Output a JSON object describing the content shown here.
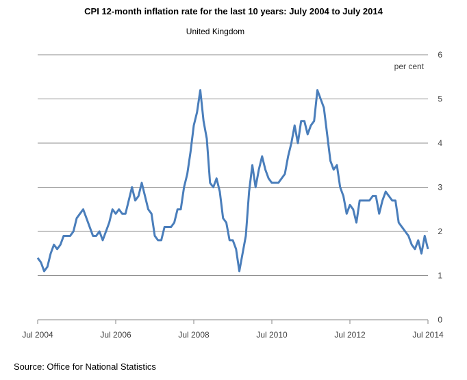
{
  "title": "CPI 12-month inflation rate for the last 10 years: July 2004 to July 2014",
  "subtitle": "United Kingdom",
  "source": "Source: Office for National Statistics",
  "chart_data": {
    "type": "line",
    "title": "CPI 12-month inflation rate for the last 10 years: July 2004 to July 2014",
    "subtitle": "United Kingdom",
    "xlabel": "",
    "ylabel": "per cent",
    "ylim": [
      0,
      6
    ],
    "yticks": [
      "0",
      "1",
      "2",
      "3",
      "4",
      "5",
      "6"
    ],
    "xticks": [
      "Jul 2004",
      "Jul 2006",
      "Jul 2008",
      "Jul 2010",
      "Jul 2012",
      "Jul 2014"
    ],
    "grid": true,
    "y_axis_position": "right",
    "line_color": "#4a7ebb",
    "series": [
      {
        "name": "",
        "x_start": "Jul 2004",
        "x_end": "Jul 2014",
        "frequency": "monthly",
        "values": [
          1.4,
          1.3,
          1.1,
          1.2,
          1.5,
          1.7,
          1.6,
          1.7,
          1.9,
          1.9,
          1.9,
          2.0,
          2.3,
          2.4,
          2.5,
          2.3,
          2.1,
          1.9,
          1.9,
          2.0,
          1.8,
          2.0,
          2.2,
          2.5,
          2.4,
          2.5,
          2.4,
          2.4,
          2.7,
          3.0,
          2.7,
          2.8,
          3.1,
          2.8,
          2.5,
          2.4,
          1.9,
          1.8,
          1.8,
          2.1,
          2.1,
          2.1,
          2.2,
          2.5,
          2.5,
          3.0,
          3.3,
          3.8,
          4.4,
          4.7,
          5.2,
          4.5,
          4.1,
          3.1,
          3.0,
          3.2,
          2.9,
          2.3,
          2.2,
          1.8,
          1.8,
          1.6,
          1.1,
          1.5,
          1.9,
          2.9,
          3.5,
          3.0,
          3.4,
          3.7,
          3.4,
          3.2,
          3.1,
          3.1,
          3.1,
          3.2,
          3.3,
          3.7,
          4.0,
          4.4,
          4.0,
          4.5,
          4.5,
          4.2,
          4.4,
          4.5,
          5.2,
          5.0,
          4.8,
          4.2,
          3.6,
          3.4,
          3.5,
          3.0,
          2.8,
          2.4,
          2.6,
          2.5,
          2.2,
          2.7,
          2.7,
          2.7,
          2.7,
          2.8,
          2.8,
          2.4,
          2.7,
          2.9,
          2.8,
          2.7,
          2.7,
          2.2,
          2.1,
          2.0,
          1.9,
          1.7,
          1.6,
          1.8,
          1.5,
          1.9,
          1.6
        ]
      }
    ]
  }
}
